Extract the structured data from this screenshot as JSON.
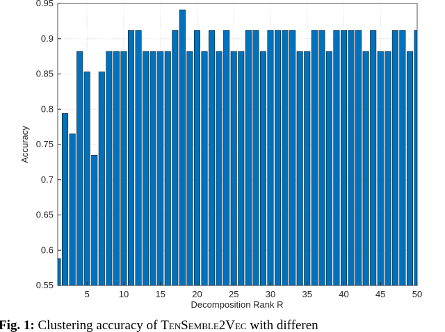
{
  "chart_data": {
    "type": "bar",
    "x_label": "Decomposition Rank R",
    "y_label": "Accuracy",
    "x": [
      1,
      2,
      3,
      4,
      5,
      6,
      7,
      8,
      9,
      10,
      11,
      12,
      13,
      14,
      15,
      16,
      17,
      18,
      19,
      20,
      21,
      22,
      23,
      24,
      25,
      26,
      27,
      28,
      29,
      30,
      31,
      32,
      33,
      34,
      35,
      36,
      37,
      38,
      39,
      40,
      41,
      42,
      43,
      44,
      45,
      46,
      47,
      48,
      49,
      50
    ],
    "values": [
      0.588,
      0.794,
      0.765,
      0.882,
      0.853,
      0.735,
      0.853,
      0.882,
      0.882,
      0.882,
      0.912,
      0.912,
      0.882,
      0.882,
      0.882,
      0.882,
      0.912,
      0.941,
      0.882,
      0.912,
      0.882,
      0.912,
      0.882,
      0.912,
      0.882,
      0.882,
      0.912,
      0.912,
      0.882,
      0.912,
      0.912,
      0.912,
      0.912,
      0.882,
      0.882,
      0.912,
      0.912,
      0.882,
      0.912,
      0.912,
      0.912,
      0.912,
      0.882,
      0.912,
      0.882,
      0.882,
      0.912,
      0.912,
      0.882,
      0.912
    ],
    "color": "#0072bd",
    "xlim": [
      1,
      50
    ],
    "xticks": [
      5,
      10,
      15,
      20,
      25,
      30,
      35,
      40,
      45,
      50
    ],
    "ylim": [
      0.55,
      0.95
    ],
    "yticks": [
      0.55,
      0.6,
      0.65,
      0.7,
      0.75,
      0.8,
      0.85,
      0.9,
      0.95
    ],
    "grid": true
  },
  "caption": {
    "label": "Fig. 1:",
    "text_before": "Clustering accuracy of",
    "name": "TenSemble2Vec",
    "text_after": "with differen"
  }
}
